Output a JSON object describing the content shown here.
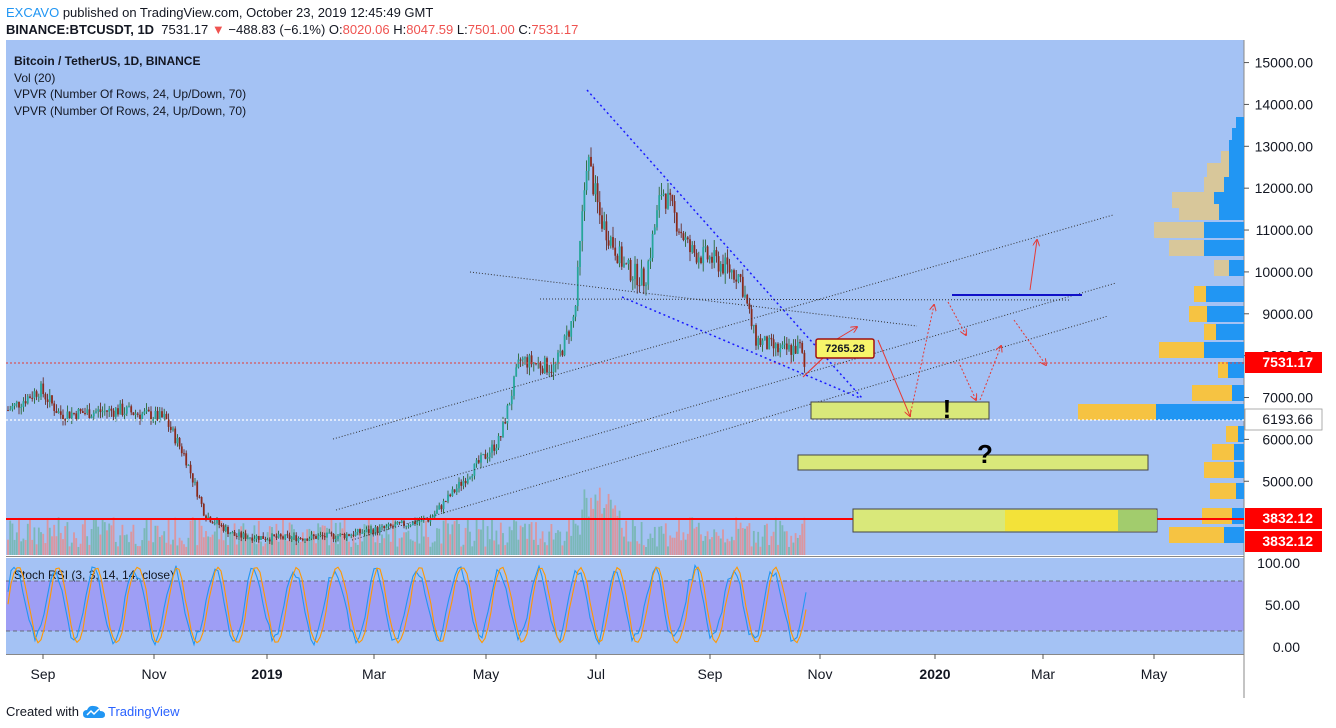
{
  "header": {
    "author": "EXCAVO",
    "published_text": " published on TradingView.com, October 23, 2019 12:45:49 GMT",
    "symbol_text": "BINANCE:BTCUSDT, 1D",
    "last_price": "7531.17",
    "change_arrow": "▼",
    "change_text": "−488.83 (−6.1%)",
    "o_label": "O:",
    "o_value": "8020.06",
    "h_label": "H:",
    "h_value": "8047.59",
    "l_label": "L:",
    "l_value": "7501.00",
    "c_label": "C:",
    "c_value": "7531.17"
  },
  "legend": {
    "title": "Bitcoin / TetherUS, 1D, BINANCE",
    "vol": "Vol (20)",
    "vpvr1": "VPVR (Number Of Rows, 24, Up/Down, 70)",
    "vpvr2": "VPVR (Number Of Rows, 24, Up/Down, 70)"
  },
  "stoch_label": "Stoch RSI (3, 3, 14, 14, close)",
  "annotations": {
    "callout_price": "7265.28",
    "exclamation": "!",
    "question": "?"
  },
  "price_badges": {
    "current": "7531.17",
    "dotted_level": "6193.66",
    "support_top": "3832.12",
    "support_bottom": "3832.12"
  },
  "footer": {
    "created_with": "Created with",
    "brand": "TradingView"
  },
  "colors": {
    "chart_bg": "#a4c2f4",
    "stoch_band": "#9e9ef5",
    "up_candle": "#26a69a",
    "down_candle": "#8b2a1b",
    "red_line": "#ff0000",
    "badge_red": "#ff0000",
    "blue_line": "#1010c8",
    "yellow_box": "#d9e87a",
    "vp_blue": "#2196f3",
    "vp_orange": "#f6c342",
    "vp_khaki": "#d8c79a"
  },
  "chart_data": [
    {
      "type": "line",
      "title": "Bitcoin / TetherUS, 1D, BINANCE",
      "x_labels": [
        "Sep",
        "Nov",
        "2019",
        "Mar",
        "May",
        "Jul",
        "Sep",
        "Nov",
        "2020",
        "Mar",
        "May"
      ],
      "y_ticks": [
        5000,
        6000,
        7000,
        8000,
        9000,
        10000,
        11000,
        12000,
        13000,
        14000,
        15000
      ],
      "ylim": [
        3000,
        15300
      ],
      "series": [
        {
          "values_by_month": [
            [
              "2018-08",
              6700
            ],
            [
              "2018-09",
              6600
            ],
            [
              "2018-10",
              6500
            ],
            [
              "2018-11",
              5600
            ],
            [
              "2018-12",
              3800
            ],
            [
              "2019-01",
              3650
            ],
            [
              "2019-02",
              3700
            ],
            [
              "2019-03",
              3950
            ],
            [
              "2019-04",
              5200
            ],
            [
              "2019-05",
              7500
            ],
            [
              "2019-06",
              10500
            ],
            [
              "2019-06-26",
              13800
            ],
            [
              "2019-07",
              11000
            ],
            [
              "2019-08",
              10500
            ],
            [
              "2019-09",
              9800
            ],
            [
              "2019-09-25",
              8400
            ],
            [
              "2019-10",
              8100
            ],
            [
              "2019-10-23",
              7531.17
            ]
          ]
        }
      ],
      "levels": {
        "current_price": 7531.17,
        "dotted_level": 6193.66,
        "support": 3832.12,
        "callout": 7265.28,
        "resistance_blue": 9150
      }
    },
    {
      "type": "line",
      "title": "Stoch RSI (3, 3, 14, 14, close)",
      "y_ticks": [
        0.0,
        50.0,
        100.0
      ],
      "y_tick_labels": [
        "0.00",
        "50.00",
        "100.00"
      ],
      "ylim": [
        0,
        100
      ],
      "band": [
        20,
        80
      ]
    }
  ]
}
